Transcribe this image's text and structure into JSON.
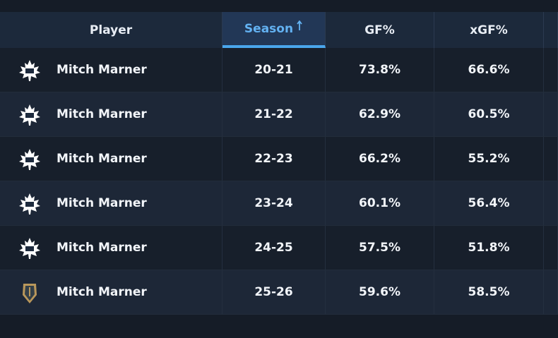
{
  "table": {
    "header": [
      "Player",
      "Season",
      "GF%",
      "xGF%"
    ],
    "rows": [
      [
        "Mitch Marner",
        "20-21",
        "73.8%",
        "66.6%"
      ],
      [
        "Mitch Marner",
        "21-22",
        "62.9%",
        "60.5%"
      ],
      [
        "Mitch Marner",
        "22-23",
        "66.2%",
        "55.2%"
      ],
      [
        "Mitch Marner",
        "23-24",
        "60.1%",
        "56.4%"
      ],
      [
        "Mitch Marner",
        "24-25",
        "57.5%",
        "51.8%"
      ],
      [
        "Mitch Marner",
        "25-26",
        "59.6%",
        "58.5%"
      ]
    ]
  }
}
